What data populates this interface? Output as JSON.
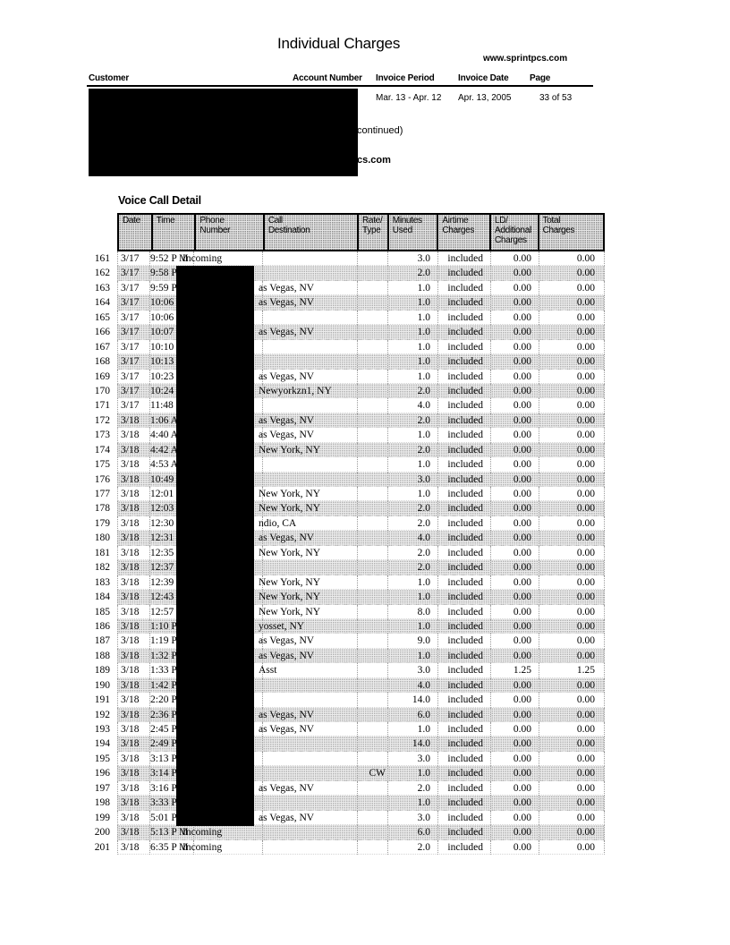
{
  "page": {
    "title": "Individual Charges",
    "website": "www.sprintpcs.com",
    "continued_fragment": "continued)",
    "redacted_bold_fragment": "cs.com"
  },
  "invoice_header": {
    "labels": {
      "customer": "Customer",
      "account_number": "Account Number",
      "invoice_period": "Invoice Period",
      "invoice_date": "Invoice Date",
      "page": "Page"
    },
    "values": {
      "invoice_period": "Mar. 13 - Apr. 12",
      "invoice_date": "Apr. 13, 2005",
      "page": "33 of 53"
    }
  },
  "redactions": [
    {
      "area": "customer-and-account-info"
    },
    {
      "area": "phone-number-column"
    }
  ],
  "voice_call_detail": {
    "section_title": "Voice Call Detail",
    "columns": [
      {
        "key": "date",
        "lines": [
          "Date"
        ]
      },
      {
        "key": "time",
        "lines": [
          "Time"
        ]
      },
      {
        "key": "phone",
        "lines": [
          "Phone",
          "Number"
        ]
      },
      {
        "key": "dest",
        "lines": [
          "Call",
          "Destination"
        ]
      },
      {
        "key": "rate",
        "lines": [
          "Rate/",
          "Type"
        ]
      },
      {
        "key": "min",
        "lines": [
          "Minutes",
          "Used"
        ]
      },
      {
        "key": "air",
        "lines": [
          "Airtime",
          "Charges"
        ]
      },
      {
        "key": "ld",
        "lines": [
          "LD/",
          "Additional",
          "Charges"
        ]
      },
      {
        "key": "tot",
        "lines": [
          "Total",
          "Charges"
        ]
      }
    ],
    "row_fields": [
      "num",
      "date",
      "time",
      "phone",
      "destination",
      "rate_type",
      "minutes_used",
      "airtime_charges",
      "ld_additional_charges",
      "total_charges"
    ],
    "rows": [
      [
        "161",
        "3/17",
        "9:52 P M",
        "Incoming",
        "",
        "",
        "3.0",
        "included",
        "0.00",
        "0.00"
      ],
      [
        "162",
        "3/17",
        "9:58 P M",
        "",
        "",
        "",
        "2.0",
        "included",
        "0.00",
        "0.00"
      ],
      [
        "163",
        "3/17",
        "9:59 P M",
        "",
        "as Vegas, NV",
        "",
        "1.0",
        "included",
        "0.00",
        "0.00"
      ],
      [
        "164",
        "3/17",
        "10:06 P M",
        "",
        "as Vegas, NV",
        "",
        "1.0",
        "included",
        "0.00",
        "0.00"
      ],
      [
        "165",
        "3/17",
        "10:06 P M",
        "",
        "",
        "",
        "1.0",
        "included",
        "0.00",
        "0.00"
      ],
      [
        "166",
        "3/17",
        "10:07 P M",
        "",
        "as Vegas, NV",
        "",
        "1.0",
        "included",
        "0.00",
        "0.00"
      ],
      [
        "167",
        "3/17",
        "10:10 P M",
        "",
        "",
        "",
        "1.0",
        "included",
        "0.00",
        "0.00"
      ],
      [
        "168",
        "3/17",
        "10:13 P M",
        "",
        "",
        "",
        "1.0",
        "included",
        "0.00",
        "0.00"
      ],
      [
        "169",
        "3/17",
        "10:23 P M",
        "",
        "as Vegas, NV",
        "",
        "1.0",
        "included",
        "0.00",
        "0.00"
      ],
      [
        "170",
        "3/17",
        "10:24 P M",
        "",
        "Newyorkzn1, NY",
        "",
        "2.0",
        "included",
        "0.00",
        "0.00"
      ],
      [
        "171",
        "3/17",
        "11:48 P M",
        "",
        "",
        "",
        "4.0",
        "included",
        "0.00",
        "0.00"
      ],
      [
        "172",
        "3/18",
        "1:06 A M",
        "",
        "as Vegas, NV",
        "",
        "2.0",
        "included",
        "0.00",
        "0.00"
      ],
      [
        "173",
        "3/18",
        "4:40 A M",
        "",
        "as Vegas, NV",
        "",
        "1.0",
        "included",
        "0.00",
        "0.00"
      ],
      [
        "174",
        "3/18",
        "4:42 A M",
        "",
        "New York, NY",
        "",
        "2.0",
        "included",
        "0.00",
        "0.00"
      ],
      [
        "175",
        "3/18",
        "4:53 A M",
        "",
        "",
        "",
        "1.0",
        "included",
        "0.00",
        "0.00"
      ],
      [
        "176",
        "3/18",
        "10:49 A M",
        "",
        "",
        "",
        "3.0",
        "included",
        "0.00",
        "0.00"
      ],
      [
        "177",
        "3/18",
        "12:01 P M",
        "",
        "New York, NY",
        "",
        "1.0",
        "included",
        "0.00",
        "0.00"
      ],
      [
        "178",
        "3/18",
        "12:03 P M",
        "",
        "New York, NY",
        "",
        "2.0",
        "included",
        "0.00",
        "0.00"
      ],
      [
        "179",
        "3/18",
        "12:30 P M",
        "",
        "ndio, CA",
        "",
        "2.0",
        "included",
        "0.00",
        "0.00"
      ],
      [
        "180",
        "3/18",
        "12:31 P M",
        "",
        "as Vegas, NV",
        "",
        "4.0",
        "included",
        "0.00",
        "0.00"
      ],
      [
        "181",
        "3/18",
        "12:35 P M",
        "",
        "New York, NY",
        "",
        "2.0",
        "included",
        "0.00",
        "0.00"
      ],
      [
        "182",
        "3/18",
        "12:37 P M",
        "",
        "",
        "",
        "2.0",
        "included",
        "0.00",
        "0.00"
      ],
      [
        "183",
        "3/18",
        "12:39 P M",
        "",
        "New York, NY",
        "",
        "1.0",
        "included",
        "0.00",
        "0.00"
      ],
      [
        "184",
        "3/18",
        "12:43 P M",
        "",
        "New York, NY",
        "",
        "1.0",
        "included",
        "0.00",
        "0.00"
      ],
      [
        "185",
        "3/18",
        "12:57 P M",
        "",
        "New York, NY",
        "",
        "8.0",
        "included",
        "0.00",
        "0.00"
      ],
      [
        "186",
        "3/18",
        "1:10 P M",
        "",
        "yosset, NY",
        "",
        "1.0",
        "included",
        "0.00",
        "0.00"
      ],
      [
        "187",
        "3/18",
        "1:19 P M",
        "",
        "as Vegas, NV",
        "",
        "9.0",
        "included",
        "0.00",
        "0.00"
      ],
      [
        "188",
        "3/18",
        "1:32 P M",
        "",
        "as Vegas, NV",
        "",
        "1.0",
        "included",
        "0.00",
        "0.00"
      ],
      [
        "189",
        "3/18",
        "1:33 P M",
        "",
        "Asst",
        "",
        "3.0",
        "included",
        "1.25",
        "1.25"
      ],
      [
        "190",
        "3/18",
        "1:42 P M",
        "",
        "",
        "",
        "4.0",
        "included",
        "0.00",
        "0.00"
      ],
      [
        "191",
        "3/18",
        "2:20 P M",
        "",
        "",
        "",
        "14.0",
        "included",
        "0.00",
        "0.00"
      ],
      [
        "192",
        "3/18",
        "2:36 P M",
        "",
        "as Vegas, NV",
        "",
        "6.0",
        "included",
        "0.00",
        "0.00"
      ],
      [
        "193",
        "3/18",
        "2:45 P M",
        "",
        "as Vegas, NV",
        "",
        "1.0",
        "included",
        "0.00",
        "0.00"
      ],
      [
        "194",
        "3/18",
        "2:49 P M",
        "",
        "",
        "",
        "14.0",
        "included",
        "0.00",
        "0.00"
      ],
      [
        "195",
        "3/18",
        "3:13 P M",
        "",
        "",
        "",
        "3.0",
        "included",
        "0.00",
        "0.00"
      ],
      [
        "196",
        "3/18",
        "3:14 P M",
        "",
        "",
        "CW",
        "1.0",
        "included",
        "0.00",
        "0.00"
      ],
      [
        "197",
        "3/18",
        "3:16 P M",
        "",
        "as Vegas, NV",
        "",
        "2.0",
        "included",
        "0.00",
        "0.00"
      ],
      [
        "198",
        "3/18",
        "3:33 P M",
        "",
        "",
        "",
        "1.0",
        "included",
        "0.00",
        "0.00"
      ],
      [
        "199",
        "3/18",
        "5:01 P M",
        "",
        "as Vegas, NV",
        "",
        "3.0",
        "included",
        "0.00",
        "0.00"
      ],
      [
        "200",
        "3/18",
        "5:13 P M",
        "Incoming",
        "",
        "",
        "6.0",
        "included",
        "0.00",
        "0.00"
      ],
      [
        "201",
        "3/18",
        "6:35 P M",
        "Incoming",
        "",
        "",
        "2.0",
        "included",
        "0.00",
        "0.00"
      ]
    ]
  }
}
